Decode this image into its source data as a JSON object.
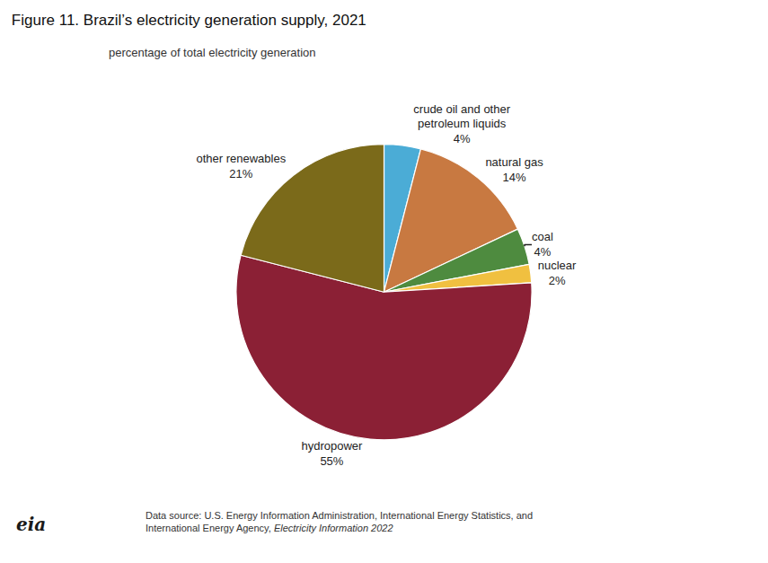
{
  "chart_data": {
    "type": "pie",
    "title": "Figure 11. Brazil’s electricity generation supply, 2021",
    "subtitle": "percentage of total electricity generation",
    "categories": [
      "crude oil and other\npetroleum liquids",
      "natural gas",
      "coal",
      "nuclear",
      "hydropower",
      "other renewables"
    ],
    "values": [
      4,
      14,
      4,
      2,
      55,
      21
    ],
    "value_labels": [
      "4%",
      "14%",
      "4%",
      "2%",
      "55%",
      "21%"
    ],
    "colors": [
      "#4BACD6",
      "#C87941",
      "#4E8B3F",
      "#F0C040",
      "#8B2035",
      "#7B6A1A"
    ],
    "data_labels": true,
    "footer": [
      "Data source: U.S. Energy Information Administration, International Energy Statistics, and\nInternational Energy Agency, ",
      "Electricity Information 2022"
    ],
    "logo": "eia"
  }
}
